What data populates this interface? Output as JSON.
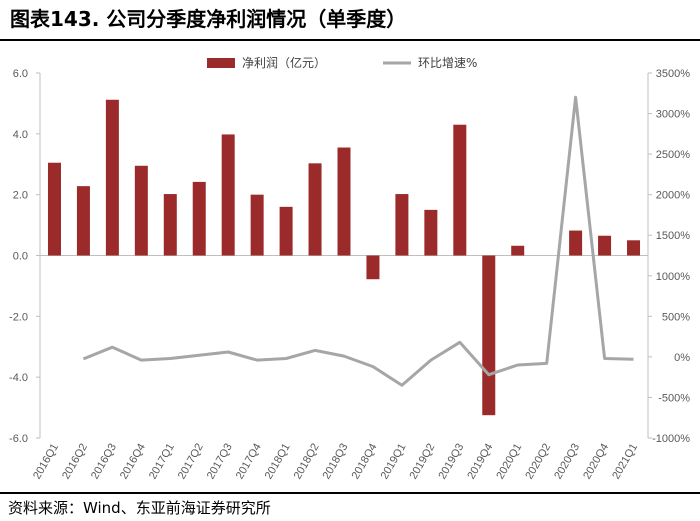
{
  "header": {
    "title": "图表143. 公司分季度净利润情况（单季度）"
  },
  "footer": {
    "source": "资料来源：Wind、东亚前海证券研究所"
  },
  "chart_data": {
    "type": "bar",
    "categories": [
      "2016Q1",
      "2016Q2",
      "2016Q3",
      "2016Q4",
      "2017Q1",
      "2017Q2",
      "2017Q3",
      "2017Q4",
      "2018Q1",
      "2018Q2",
      "2018Q3",
      "2018Q4",
      "2019Q1",
      "2019Q2",
      "2019Q3",
      "2019Q4",
      "2020Q1",
      "2020Q2",
      "2020Q3",
      "2020Q4",
      "2021Q1"
    ],
    "series": [
      {
        "name": "净利润（亿元）",
        "type": "bar",
        "axis": "left",
        "color": "#9B2A2A",
        "values": [
          3.05,
          2.28,
          5.12,
          2.95,
          2.02,
          2.42,
          3.98,
          2.0,
          1.6,
          3.03,
          3.55,
          -0.78,
          2.02,
          1.5,
          4.3,
          -5.25,
          0.32,
          null,
          0.82,
          0.65,
          0.5
        ]
      },
      {
        "name": "环比增速%",
        "type": "line",
        "axis": "right",
        "color": "#A6A6A6",
        "values": [
          null,
          -25,
          120,
          -40,
          -20,
          20,
          60,
          -40,
          -20,
          80,
          10,
          -120,
          -350,
          -40,
          180,
          -220,
          -100,
          -80,
          3200,
          -20,
          -30
        ]
      }
    ],
    "left_axis": {
      "min": -6.0,
      "max": 6.0,
      "ticks": [
        "6.0",
        "4.0",
        "2.0",
        "0.0",
        "-2.0",
        "-4.0",
        "-6.0"
      ]
    },
    "right_axis": {
      "min": -1000,
      "max": 3500,
      "ticks": [
        "3500%",
        "3000%",
        "2500%",
        "2000%",
        "1500%",
        "1000%",
        "500%",
        "0%",
        "-500%",
        "-1000%"
      ]
    },
    "legend": {
      "position": "top-center"
    },
    "grid": false
  }
}
